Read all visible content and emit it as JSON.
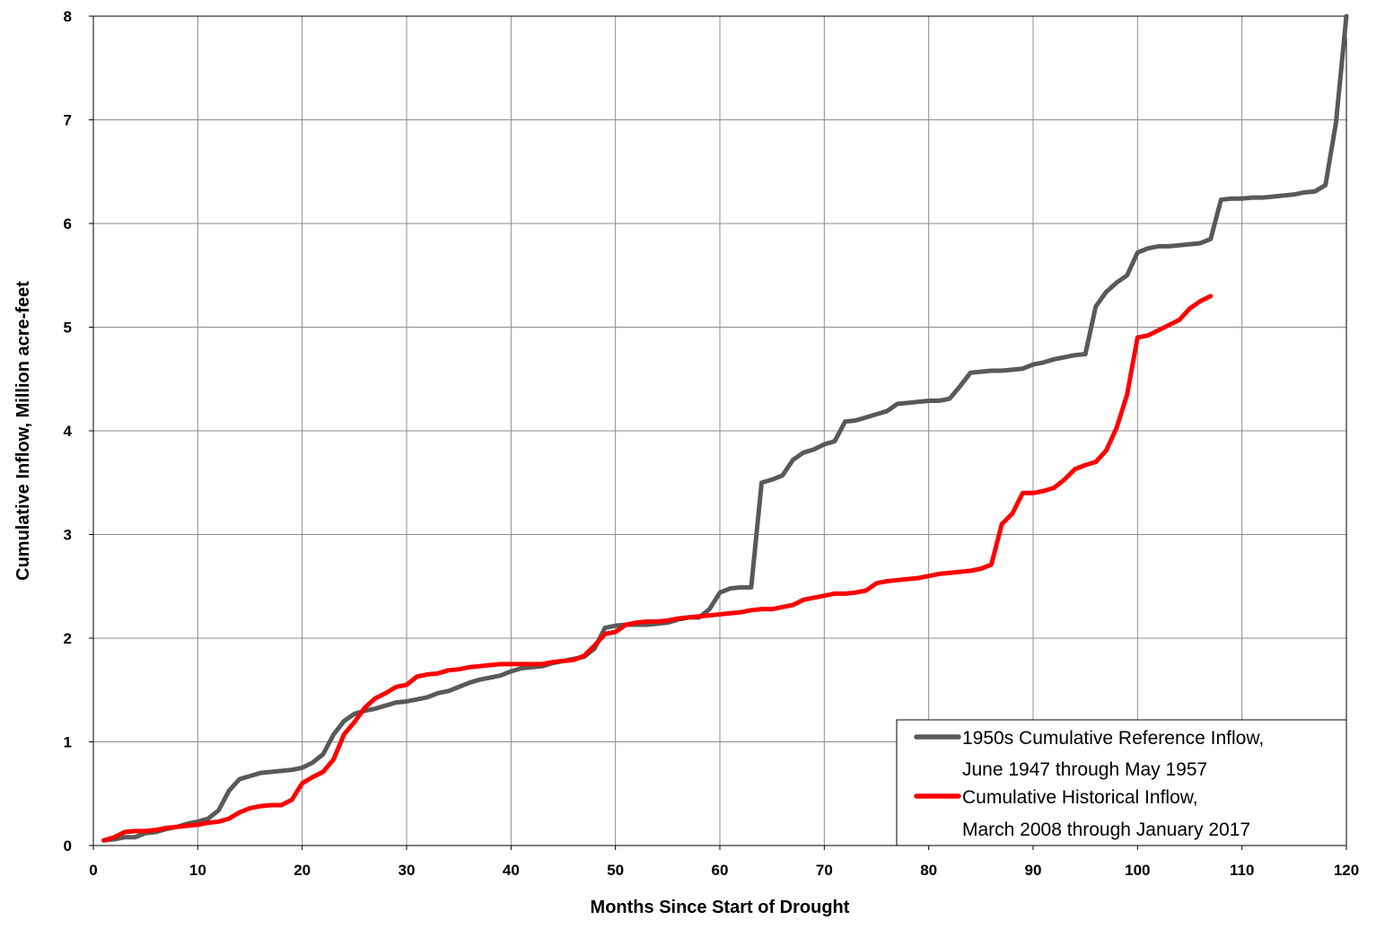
{
  "chart_data": {
    "type": "line",
    "title": "",
    "xlabel": "Months Since Start of Drought",
    "ylabel": "Cumulative Inflow, Million acre-feet",
    "xlim": [
      0,
      120
    ],
    "ylim": [
      0,
      8
    ],
    "x_ticks": [
      "0",
      "10",
      "20",
      "30",
      "40",
      "50",
      "60",
      "70",
      "80",
      "90",
      "100",
      "110",
      "120"
    ],
    "y_ticks": [
      "0",
      "1",
      "2",
      "3",
      "4",
      "5",
      "6",
      "7",
      "8"
    ],
    "grid": true,
    "legend_position": "bottom-right",
    "series": [
      {
        "name_line1": "1950s Cumulative Reference Inflow,",
        "name_line2": "June 1947 through May 1957",
        "color": "#595959",
        "x": [
          1,
          2,
          3,
          4,
          5,
          6,
          7,
          8,
          9,
          10,
          11,
          12,
          13,
          14,
          15,
          16,
          17,
          18,
          19,
          20,
          21,
          22,
          23,
          24,
          25,
          26,
          27,
          28,
          29,
          30,
          31,
          32,
          33,
          34,
          35,
          36,
          37,
          38,
          39,
          40,
          41,
          42,
          43,
          44,
          45,
          46,
          47,
          48,
          49,
          50,
          51,
          52,
          53,
          54,
          55,
          56,
          57,
          58,
          59,
          60,
          61,
          62,
          63,
          64,
          65,
          66,
          67,
          68,
          69,
          70,
          71,
          72,
          73,
          74,
          75,
          76,
          77,
          78,
          79,
          80,
          81,
          82,
          83,
          84,
          85,
          86,
          87,
          88,
          89,
          90,
          91,
          92,
          93,
          94,
          95,
          96,
          97,
          98,
          99,
          100,
          101,
          102,
          103,
          104,
          105,
          106,
          107,
          108,
          109,
          110,
          111,
          112,
          113,
          114,
          115,
          116,
          117,
          118,
          119,
          120
        ],
        "y": [
          0.05,
          0.06,
          0.08,
          0.08,
          0.12,
          0.13,
          0.16,
          0.18,
          0.21,
          0.23,
          0.26,
          0.34,
          0.53,
          0.64,
          0.67,
          0.7,
          0.71,
          0.72,
          0.73,
          0.75,
          0.8,
          0.88,
          1.07,
          1.2,
          1.27,
          1.3,
          1.32,
          1.35,
          1.38,
          1.39,
          1.41,
          1.43,
          1.47,
          1.49,
          1.53,
          1.57,
          1.6,
          1.62,
          1.64,
          1.68,
          1.71,
          1.72,
          1.73,
          1.76,
          1.78,
          1.8,
          1.82,
          1.9,
          2.1,
          2.12,
          2.13,
          2.13,
          2.13,
          2.14,
          2.15,
          2.18,
          2.2,
          2.2,
          2.28,
          2.44,
          2.48,
          2.49,
          2.49,
          3.5,
          3.53,
          3.57,
          3.72,
          3.79,
          3.82,
          3.87,
          3.9,
          4.09,
          4.1,
          4.13,
          4.16,
          4.19,
          4.26,
          4.27,
          4.28,
          4.29,
          4.29,
          4.31,
          4.43,
          4.56,
          4.57,
          4.58,
          4.58,
          4.59,
          4.6,
          4.64,
          4.66,
          4.69,
          4.71,
          4.73,
          4.74,
          5.2,
          5.34,
          5.43,
          5.5,
          5.72,
          5.76,
          5.78,
          5.78,
          5.79,
          5.8,
          5.81,
          5.85,
          6.23,
          6.24,
          6.24,
          6.25,
          6.25,
          6.26,
          6.27,
          6.28,
          6.3,
          6.31,
          6.37,
          6.97,
          8.0
        ]
      },
      {
        "name_line1": "Cumulative Historical Inflow,",
        "name_line2": "March 2008 through January 2017",
        "color": "#ff0000",
        "x": [
          1,
          2,
          3,
          4,
          5,
          6,
          7,
          8,
          9,
          10,
          11,
          12,
          13,
          14,
          15,
          16,
          17,
          18,
          19,
          20,
          21,
          22,
          23,
          24,
          25,
          26,
          27,
          28,
          29,
          30,
          31,
          32,
          33,
          34,
          35,
          36,
          37,
          38,
          39,
          40,
          41,
          42,
          43,
          44,
          45,
          46,
          47,
          48,
          49,
          50,
          51,
          52,
          53,
          54,
          55,
          56,
          57,
          58,
          59,
          60,
          61,
          62,
          63,
          64,
          65,
          66,
          67,
          68,
          69,
          70,
          71,
          72,
          73,
          74,
          75,
          76,
          77,
          78,
          79,
          80,
          81,
          82,
          83,
          84,
          85,
          86,
          87,
          88,
          89,
          90,
          91,
          92,
          93,
          94,
          95,
          96,
          97,
          98,
          99,
          100,
          101,
          102,
          103,
          104,
          105,
          106,
          107
        ],
        "y": [
          0.05,
          0.08,
          0.13,
          0.14,
          0.14,
          0.15,
          0.17,
          0.18,
          0.19,
          0.2,
          0.22,
          0.23,
          0.26,
          0.32,
          0.36,
          0.38,
          0.39,
          0.39,
          0.44,
          0.6,
          0.66,
          0.71,
          0.83,
          1.07,
          1.19,
          1.33,
          1.42,
          1.47,
          1.53,
          1.55,
          1.63,
          1.65,
          1.66,
          1.69,
          1.7,
          1.72,
          1.73,
          1.74,
          1.75,
          1.75,
          1.75,
          1.75,
          1.75,
          1.77,
          1.78,
          1.79,
          1.83,
          1.93,
          2.04,
          2.06,
          2.13,
          2.15,
          2.16,
          2.16,
          2.17,
          2.19,
          2.2,
          2.21,
          2.22,
          2.23,
          2.24,
          2.25,
          2.27,
          2.28,
          2.28,
          2.3,
          2.32,
          2.37,
          2.39,
          2.41,
          2.43,
          2.43,
          2.44,
          2.46,
          2.53,
          2.55,
          2.56,
          2.57,
          2.58,
          2.6,
          2.62,
          2.63,
          2.64,
          2.65,
          2.67,
          2.71,
          3.1,
          3.2,
          3.4,
          3.4,
          3.42,
          3.45,
          3.53,
          3.63,
          3.67,
          3.7,
          3.81,
          4.03,
          4.35,
          4.9,
          4.92,
          4.97,
          5.02,
          5.07,
          5.18,
          5.25,
          5.3
        ]
      }
    ]
  }
}
